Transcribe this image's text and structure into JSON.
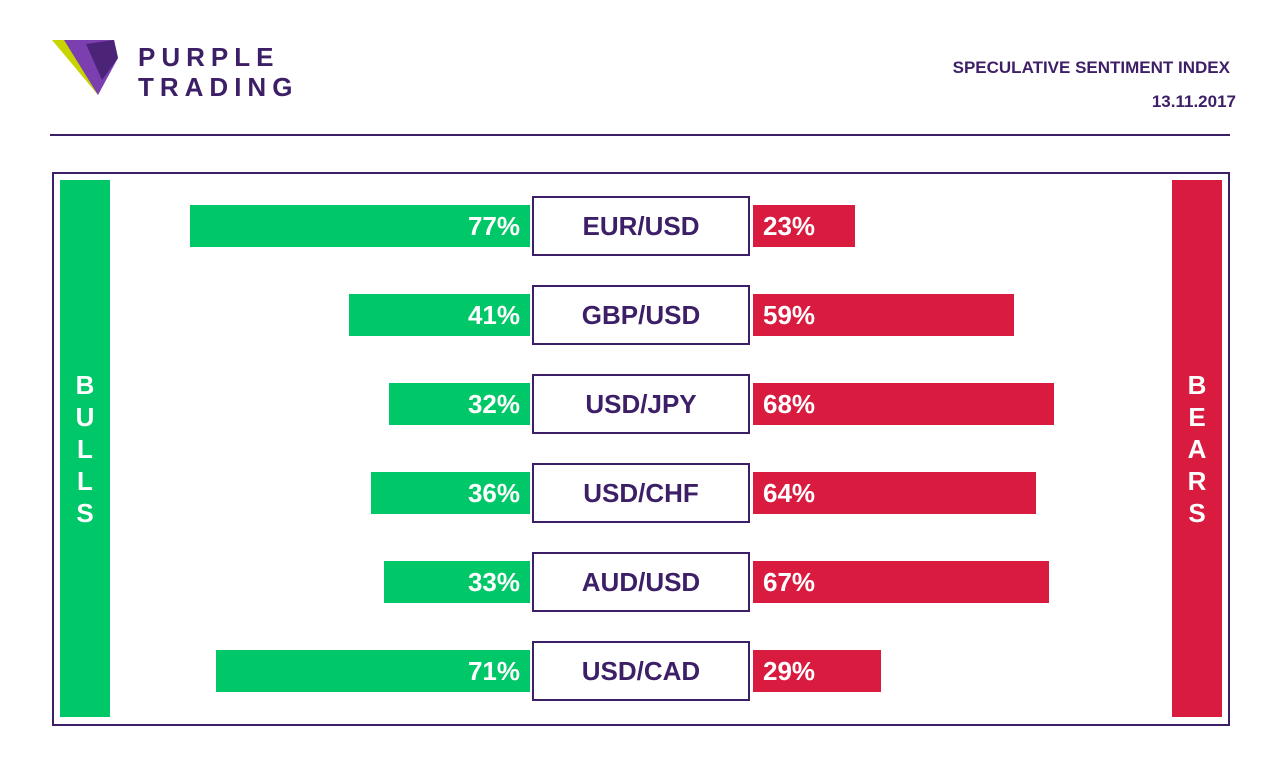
{
  "brand": {
    "line1": "PURPLE",
    "line2": "TRADING"
  },
  "header": {
    "title": "SPECULATIVE SENTIMENT INDEX",
    "date": "13.11.2017"
  },
  "colors": {
    "bulls": "#00c767",
    "bears": "#d91b3f",
    "brand": "#3c1f66"
  },
  "chart_data": {
    "type": "bar",
    "title": "SPECULATIVE SENTIMENT INDEX",
    "left_label": "BULLS",
    "right_label": "BEARS",
    "categories": [
      "EUR/USD",
      "GBP/USD",
      "USD/JPY",
      "USD/CHF",
      "AUD/USD",
      "USD/CAD"
    ],
    "series": [
      {
        "name": "BULLS",
        "values": [
          77,
          41,
          32,
          36,
          33,
          71
        ]
      },
      {
        "name": "BEARS",
        "values": [
          23,
          59,
          68,
          64,
          67,
          29
        ]
      }
    ],
    "unit": "%",
    "ylim": [
      0,
      100
    ]
  }
}
